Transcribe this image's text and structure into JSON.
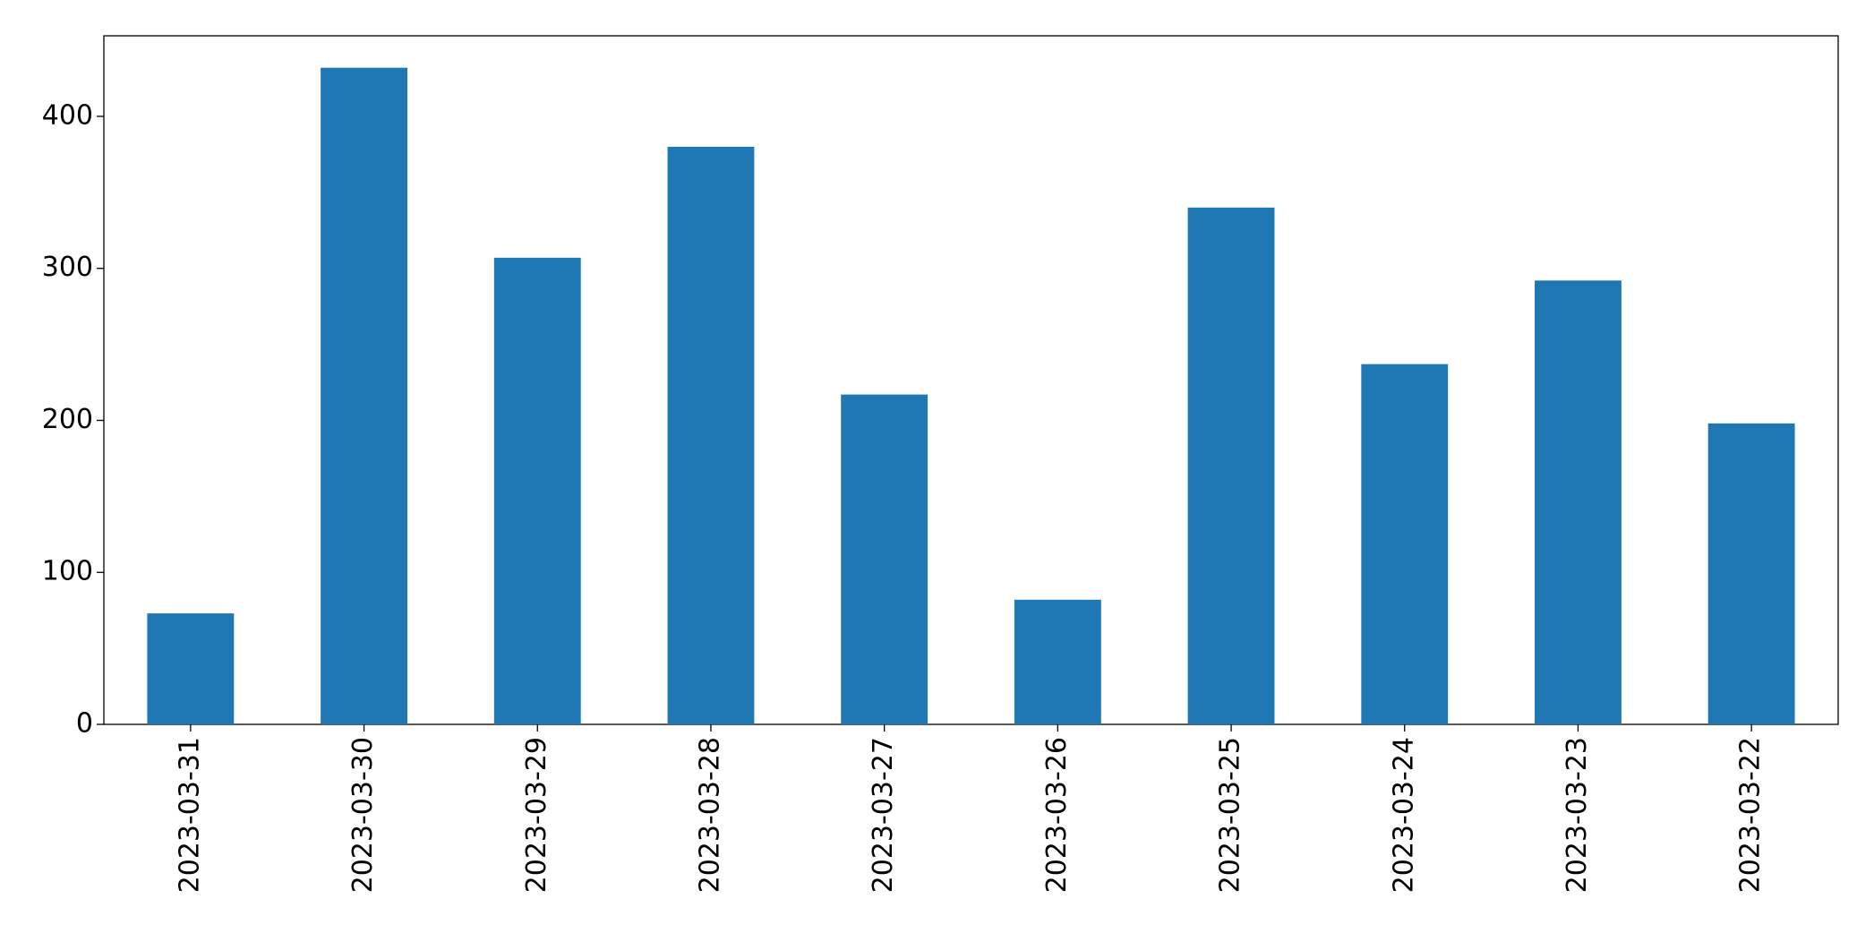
{
  "chart_data": {
    "type": "bar",
    "categories": [
      "2023-03-31",
      "2023-03-30",
      "2023-03-29",
      "2023-03-28",
      "2023-03-27",
      "2023-03-26",
      "2023-03-25",
      "2023-03-24",
      "2023-03-23",
      "2023-03-22"
    ],
    "values": [
      73,
      432,
      307,
      380,
      217,
      82,
      340,
      237,
      292,
      198
    ],
    "color": "#1f77b4",
    "ylim": [
      0,
      453
    ],
    "yticks": [
      0,
      100,
      200,
      300,
      400
    ],
    "grid": false
  }
}
